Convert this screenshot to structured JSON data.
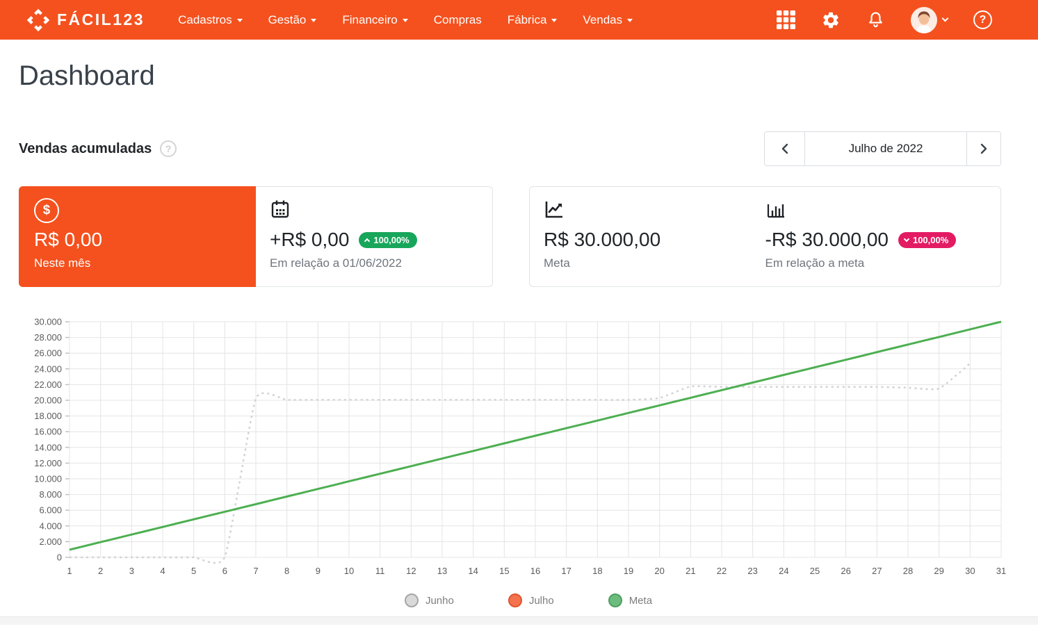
{
  "brand": {
    "name": "FÁCIL123"
  },
  "nav": {
    "items": [
      {
        "label": "Cadastros",
        "dropdown": true
      },
      {
        "label": "Gestão",
        "dropdown": true
      },
      {
        "label": "Financeiro",
        "dropdown": true
      },
      {
        "label": "Compras",
        "dropdown": false
      },
      {
        "label": "Fábrica",
        "dropdown": true
      },
      {
        "label": "Vendas",
        "dropdown": true
      }
    ]
  },
  "icons": {
    "help_glyph": "?",
    "dollar_glyph": "$"
  },
  "page": {
    "title": "Dashboard"
  },
  "section": {
    "title": "Vendas acumuladas"
  },
  "period_nav": {
    "label": "Julho de 2022"
  },
  "cards": {
    "current_month": {
      "value": "R$ 0,00",
      "label": "Neste mês"
    },
    "vs_previous": {
      "value": "+R$ 0,00",
      "badge": "100,00%",
      "label": "Em relação a 01/06/2022"
    },
    "goal": {
      "value": "R$ 30.000,00",
      "label": "Meta"
    },
    "vs_goal": {
      "value": "-R$ 30.000,00",
      "badge": "100,00%",
      "label": "Em relação a meta"
    }
  },
  "colors": {
    "primary": "#f4511e",
    "badge_up": "#18a65b",
    "badge_down": "#e31b63",
    "grid": "#e4e4e4",
    "axis_text": "#5a5a5a"
  },
  "chart_data": {
    "type": "line",
    "title": "Vendas acumuladas - Julho de 2022",
    "xlabel": "",
    "ylabel": "",
    "x": [
      1,
      2,
      3,
      4,
      5,
      6,
      7,
      8,
      9,
      10,
      11,
      12,
      13,
      14,
      15,
      16,
      17,
      18,
      19,
      20,
      21,
      22,
      23,
      24,
      25,
      26,
      27,
      28,
      29,
      30,
      31
    ],
    "ylim": [
      0,
      30000
    ],
    "ytick_step": 2000,
    "grid": true,
    "legend_position": "bottom",
    "series": [
      {
        "name": "Junho",
        "color": "#d2d2d2",
        "style": "dashed",
        "legend_fill": "#d9d9d9",
        "legend_border": "#a6a6a6",
        "values": [
          0,
          0,
          0,
          0,
          0,
          50,
          20200,
          20050,
          20050,
          20050,
          20050,
          20050,
          20050,
          20050,
          20050,
          20050,
          20050,
          20050,
          20050,
          20300,
          21750,
          21700,
          21700,
          21700,
          21700,
          21700,
          21700,
          21600,
          21500,
          24700
        ]
      },
      {
        "name": "Julho",
        "color": "#f4734e",
        "style": "solid",
        "legend_fill": "#f4734e",
        "legend_border": "#e0552b",
        "values": [
          0
        ]
      },
      {
        "name": "Meta",
        "color": "#4caf50",
        "style": "solid",
        "legend_fill": "#6cbd7d",
        "legend_border": "#4e9f61",
        "values": [
          968,
          1935,
          2903,
          3871,
          4839,
          5806,
          6774,
          7742,
          8710,
          9677,
          10645,
          11613,
          12581,
          13548,
          14516,
          15484,
          16452,
          17419,
          18387,
          19355,
          20323,
          21290,
          22258,
          23226,
          24194,
          25161,
          26129,
          27097,
          28065,
          29032,
          30000
        ]
      }
    ]
  }
}
